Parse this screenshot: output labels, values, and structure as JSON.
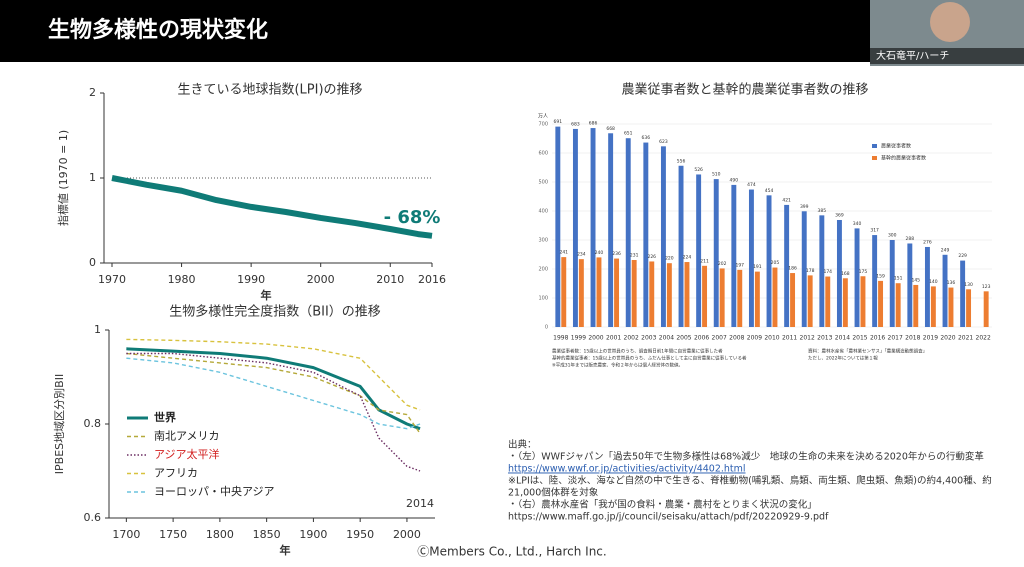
{
  "header": {
    "title": "生物多様性の現状変化"
  },
  "webcam": {
    "name": "大石竜平/ハーチ"
  },
  "chart_data": [
    {
      "type": "line",
      "title": "生きている地球指数(LPI)の推移",
      "y_label": "指標値 (1970 = 1)",
      "x_label": "年",
      "x": [
        1970,
        1975,
        1980,
        1985,
        1990,
        1995,
        2000,
        2005,
        2010,
        2014,
        2016
      ],
      "series": [
        {
          "color": "#0f7b77",
          "values": [
            1,
            0.92,
            0.85,
            0.74,
            0.66,
            0.6,
            0.53,
            0.47,
            0.4,
            0.34,
            0.32
          ]
        }
      ],
      "xlim": [
        1970,
        2016
      ],
      "ylim": [
        0,
        2
      ],
      "xticks": [
        1970,
        1980,
        1990,
        2000,
        2010,
        2016
      ],
      "yticks": [
        0,
        1,
        2
      ],
      "hline": 1,
      "annotation": "- 68%"
    },
    {
      "type": "line",
      "title": "生物多様性完全度指数（BII）の推移",
      "y_label": "IPBES地域区分別BII",
      "x_label": "年",
      "x": [
        1700,
        1750,
        1800,
        1850,
        1900,
        1950,
        1970,
        2000,
        2014
      ],
      "series": [
        {
          "name": "世界",
          "color": "#0f7b77",
          "style": "solid",
          "values": [
            0.96,
            0.955,
            0.95,
            0.94,
            0.92,
            0.88,
            0.83,
            0.8,
            0.79
          ]
        },
        {
          "name": "南北アメリカ",
          "color": "#b5a93a",
          "style": "dashed",
          "values": [
            0.95,
            0.94,
            0.93,
            0.92,
            0.9,
            0.86,
            0.83,
            0.82,
            0.78
          ]
        },
        {
          "name": "アジア太平洋",
          "color": "#6b2d62",
          "style": "dotted",
          "label_color": "#d21f1f",
          "values": [
            0.95,
            0.95,
            0.94,
            0.93,
            0.91,
            0.86,
            0.77,
            0.71,
            0.7
          ]
        },
        {
          "name": "アフリカ",
          "color": "#d8c23e",
          "style": "dashed",
          "values": [
            0.98,
            0.978,
            0.975,
            0.97,
            0.96,
            0.94,
            0.9,
            0.84,
            0.83
          ]
        },
        {
          "name": "ヨーロッパ・中央アジア",
          "color": "#6cc4de",
          "style": "dashed",
          "values": [
            0.94,
            0.93,
            0.91,
            0.88,
            0.85,
            0.82,
            0.8,
            0.79,
            0.8
          ]
        }
      ],
      "xlim": [
        1690,
        2030
      ],
      "ylim": [
        0.6,
        1
      ],
      "xticks": [
        1700,
        1750,
        1800,
        1850,
        1900,
        1950,
        2000
      ],
      "yticks": [
        0.6,
        0.8,
        1
      ],
      "annotation": "2014"
    },
    {
      "type": "bar",
      "title": "農業従事者数と基幹的農業従事者数の推移",
      "y_unit": "万人",
      "categories": [
        "1998",
        "1999",
        "2000",
        "2001",
        "2002",
        "2003",
        "2004",
        "2005",
        "2006",
        "2007",
        "2008",
        "2009",
        "2010",
        "2011",
        "2012",
        "2013",
        "2014",
        "2015",
        "2016",
        "2017",
        "2018",
        "2019",
        "2020",
        "2021",
        "2022"
      ],
      "series": [
        {
          "name": "農業従事者数",
          "color": "#4472c4",
          "values": [
            691,
            683,
            686,
            668,
            651,
            636,
            623,
            556,
            526,
            510,
            490,
            474,
            454,
            421,
            399,
            385,
            369,
            340,
            317,
            300,
            288,
            276,
            249,
            229,
            null
          ]
        },
        {
          "name": "基幹的農業従事者数",
          "color": "#ed7d31",
          "values": [
            241,
            234,
            240,
            236,
            231,
            226,
            220,
            224,
            211,
            202,
            197,
            191,
            205,
            186,
            178,
            174,
            168,
            175,
            159,
            151,
            145,
            140,
            136,
            130,
            123
          ]
        }
      ],
      "ylim": [
        0,
        700
      ],
      "yticks": [
        0,
        100,
        200,
        300,
        400,
        500,
        600,
        700
      ],
      "notes": [
        "農業従事者数：15歳以上の世帯員のうち、調査期日前1年間に自営農業に従事した者",
        "基幹的農業従事者：15歳以上の世帯員のうち、ふだん仕事として主に自営農業に従事している者",
        "※平成31年までは販売農家、令和２年からは個人経営体の数値。",
        "資料：農林水産省「農林業センサス」「農業構造動態調査」",
        "ただし、2022年については第１報"
      ]
    }
  ],
  "sources": {
    "heading": "出典：",
    "lines": [
      "・（左）WWFジャパン「過去50年で生物多様性は68%減少　地球の生命の未来を決める2020年からの行動変革",
      "https://www.wwf.or.jp/activities/activity/4402.html",
      "※LPIは、陸、淡水、海など自然の中で生きる、脊椎動物(哺乳類、鳥類、両生類、爬虫類、魚類)の約4,400種、約",
      "21,000個体群を対象",
      "・（右）農林水産省「我が国の食料・農業・農村をとりまく状況の変化」",
      "https://www.maff.go.jp/j/council/seisaku/attach/pdf/20220929-9.pdf"
    ]
  },
  "footer": {
    "text": "ⒸMembers Co., Ltd., Harch Inc."
  }
}
